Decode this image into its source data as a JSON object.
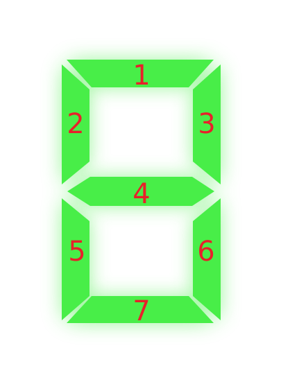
{
  "display": {
    "segment_color": "#48ee48",
    "glow_color": "#48ee48",
    "label_color": "#e8202a",
    "segments": [
      {
        "id": 1,
        "label": "1"
      },
      {
        "id": 2,
        "label": "2"
      },
      {
        "id": 3,
        "label": "3"
      },
      {
        "id": 4,
        "label": "4"
      },
      {
        "id": 5,
        "label": "5"
      },
      {
        "id": 6,
        "label": "6"
      },
      {
        "id": 7,
        "label": "7"
      }
    ]
  }
}
